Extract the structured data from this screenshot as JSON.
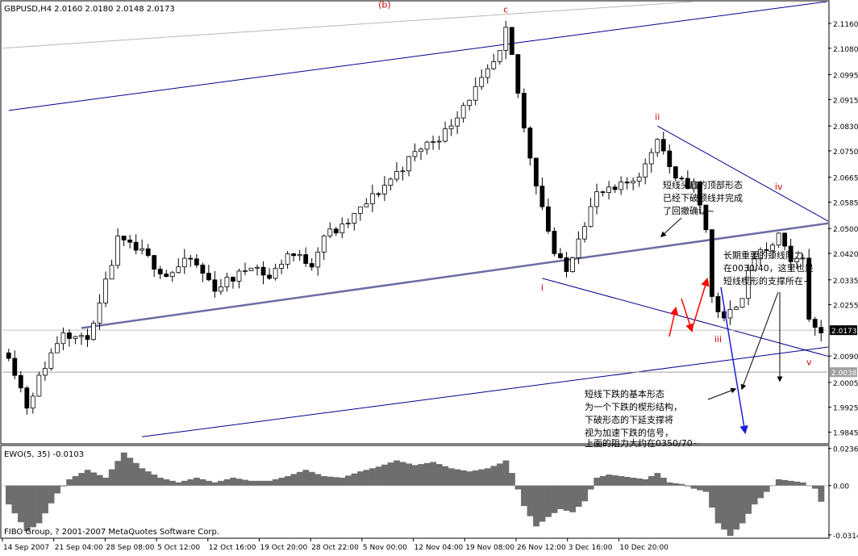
{
  "main_header": "GBPUSD,H4  2.0160 2.0180 2.0148 2.0173",
  "indicator_header": "EWO(5, 35) -0.0103",
  "copyright": "FIBO Group, ? 2001-2007 MetaQuotes Software Corp.",
  "colors": {
    "bull_candle": "#ffffff",
    "bear_candle": "#000000",
    "trendline": "#00008b",
    "channel_line": "#6c6ca6",
    "histogram": "#6e6e6e",
    "wave_label": "#cc0000",
    "arrow_red": "#ff0000",
    "arrow_blue": "#1d1ddb",
    "arrow_black": "#000000",
    "price_tag_bg": "#ffffff",
    "price_tag_current": "#000000"
  },
  "wave_labels": [
    {
      "text": "(b)",
      "bar": 62,
      "price": 2.121
    },
    {
      "text": "c",
      "bar": 82,
      "price": 2.1195
    },
    {
      "text": "ii",
      "bar": 107,
      "price": 2.085
    },
    {
      "text": "i",
      "bar": 88,
      "price": 2.03
    },
    {
      "text": "iii",
      "bar": 117,
      "price": 2.0135
    },
    {
      "text": "iv",
      "bar": 127,
      "price": 2.0625
    },
    {
      "text": "v",
      "bar": 132,
      "price": 2.006
    }
  ],
  "annotations": {
    "top_note": [
      "短线头肩的顶部形态",
      "已经下破颈线并完成",
      "了回撤确认~"
    ],
    "right_note": [
      "长期重要的颈线阻力",
      "在0030/40，这里也是",
      "短线楔形的支撑所在~"
    ],
    "bottom_note": [
      "短线下跌的基本形态",
      "为一个下跌的楔形结构，",
      "下破形态的下延支撑将",
      "视为加速下跌的信号，",
      "上面的阻力大约在0350/70~"
    ]
  },
  "price_tags": {
    "current": "2.0173",
    "level": "2.0038"
  },
  "chart_data": [
    {
      "type": "candlestick",
      "symbol": "GBPUSD",
      "timeframe": "H4",
      "title": "GBPUSD,H4  2.0160 2.0180 2.0148 2.0173",
      "last": {
        "open": 2.016,
        "high": 2.018,
        "low": 2.0148,
        "close": 2.0173
      },
      "ylim": [
        1.981,
        2.123
      ],
      "y_ticks": [
        "2.1160",
        "2.1080",
        "2.0995",
        "2.0915",
        "2.0830",
        "2.0750",
        "2.0665",
        "2.0585",
        "2.0500",
        "2.0420",
        "2.0335",
        "2.0255",
        "2.0173",
        "2.0090",
        "2.0038",
        "2.0005",
        "1.9925",
        "1.9845"
      ],
      "x_ticks": [
        "14 Sep 2007",
        "21 Sep 04:00",
        "28 Sep 08:00",
        "5 Oct 12:00",
        "12 Oct 16:00",
        "19 Oct 20:00",
        "28 Oct 22:00",
        "5 Nov 00:00",
        "12 Nov 04:00",
        "19 Nov 08:00",
        "26 Nov 12:00",
        "3 Dec 16:00",
        "10 Dec 20:00"
      ],
      "bars_count": 135,
      "close_anchors": [
        [
          0,
          2.01
        ],
        [
          3,
          1.993
        ],
        [
          6,
          2.006
        ],
        [
          9,
          2.0175
        ],
        [
          12,
          2.014
        ],
        [
          14,
          2.018
        ],
        [
          18,
          2.046
        ],
        [
          22,
          2.042
        ],
        [
          26,
          2.035
        ],
        [
          30,
          2.04
        ],
        [
          34,
          2.031
        ],
        [
          38,
          2.035
        ],
        [
          40,
          2.039
        ],
        [
          43,
          2.034
        ],
        [
          46,
          2.042
        ],
        [
          50,
          2.039
        ],
        [
          52,
          2.048
        ],
        [
          55,
          2.05
        ],
        [
          58,
          2.056
        ],
        [
          62,
          2.064
        ],
        [
          65,
          2.07
        ],
        [
          68,
          2.076
        ],
        [
          72,
          2.081
        ],
        [
          75,
          2.09
        ],
        [
          78,
          2.097
        ],
        [
          81,
          2.106
        ],
        [
          82,
          2.113
        ],
        [
          83,
          2.105
        ],
        [
          85,
          2.082
        ],
        [
          87,
          2.065
        ],
        [
          90,
          2.042
        ],
        [
          92,
          2.036
        ],
        [
          94,
          2.048
        ],
        [
          97,
          2.061
        ],
        [
          100,
          2.062
        ],
        [
          103,
          2.066
        ],
        [
          105,
          2.07
        ],
        [
          107,
          2.08
        ],
        [
          110,
          2.065
        ],
        [
          113,
          2.064
        ],
        [
          115,
          2.05
        ],
        [
          116,
          2.028
        ],
        [
          118,
          2.02
        ],
        [
          121,
          2.029
        ],
        [
          123,
          2.041
        ],
        [
          125,
          2.042
        ],
        [
          127,
          2.048
        ],
        [
          129,
          2.038
        ],
        [
          131,
          2.042
        ],
        [
          132,
          2.02
        ],
        [
          134,
          2.0173
        ]
      ],
      "lines": [
        {
          "name": "upper-channel",
          "from": [
            0,
            2.088
          ],
          "to": [
            135,
            2.123
          ]
        },
        {
          "name": "neckline",
          "from": [
            12,
            2.018
          ],
          "to": [
            140,
            2.053
          ]
        },
        {
          "name": "lower-wedge",
          "from": [
            88,
            2.034
          ],
          "to": [
            150,
            2.001
          ]
        },
        {
          "name": "upper-wedge",
          "from": [
            107,
            2.083
          ],
          "to": [
            170,
            2.0145
          ]
        },
        {
          "name": "long-support",
          "from": [
            22,
            1.983
          ],
          "to": [
            165,
            2.0195
          ]
        }
      ]
    },
    {
      "type": "histogram",
      "name": "EWO(5, 35)",
      "value": -0.0103,
      "ylim": [
        -0.033,
        0.025
      ],
      "y_ticks": [
        "0.0236",
        "0.00",
        "-0.0314"
      ],
      "bars_count": 135,
      "value_anchors": [
        [
          0,
          -0.012
        ],
        [
          3,
          -0.029
        ],
        [
          5,
          -0.024
        ],
        [
          8,
          -0.005
        ],
        [
          10,
          0.004
        ],
        [
          13,
          0.01
        ],
        [
          16,
          0.005
        ],
        [
          19,
          0.021
        ],
        [
          22,
          0.011
        ],
        [
          25,
          0.005
        ],
        [
          28,
          0.002
        ],
        [
          31,
          0.005
        ],
        [
          34,
          0.002
        ],
        [
          37,
          0.005
        ],
        [
          40,
          0.003
        ],
        [
          43,
          0.003
        ],
        [
          46,
          0.006
        ],
        [
          49,
          0.01
        ],
        [
          52,
          0.006
        ],
        [
          55,
          0.005
        ],
        [
          58,
          0.009
        ],
        [
          61,
          0.012
        ],
        [
          64,
          0.016
        ],
        [
          67,
          0.013
        ],
        [
          70,
          0.015
        ],
        [
          73,
          0.011
        ],
        [
          76,
          0.009
        ],
        [
          79,
          0.011
        ],
        [
          81,
          0.014
        ],
        [
          82,
          0.016
        ],
        [
          83,
          0.008
        ],
        [
          85,
          -0.013
        ],
        [
          87,
          -0.026
        ],
        [
          89,
          -0.02
        ],
        [
          91,
          -0.015
        ],
        [
          93,
          -0.017
        ],
        [
          95,
          -0.01
        ],
        [
          97,
          0.005
        ],
        [
          99,
          0.007
        ],
        [
          101,
          0.006
        ],
        [
          103,
          0.005
        ],
        [
          105,
          0.004
        ],
        [
          107,
          0.008
        ],
        [
          109,
          0.002
        ],
        [
          111,
          0.001
        ],
        [
          113,
          -0.002
        ],
        [
          115,
          -0.004
        ],
        [
          117,
          -0.024
        ],
        [
          119,
          -0.032
        ],
        [
          121,
          -0.024
        ],
        [
          123,
          -0.012
        ],
        [
          125,
          -0.004
        ],
        [
          127,
          0.004
        ],
        [
          129,
          0.003
        ],
        [
          131,
          0.002
        ],
        [
          133,
          -0.002
        ],
        [
          134,
          -0.0103
        ]
      ]
    }
  ]
}
